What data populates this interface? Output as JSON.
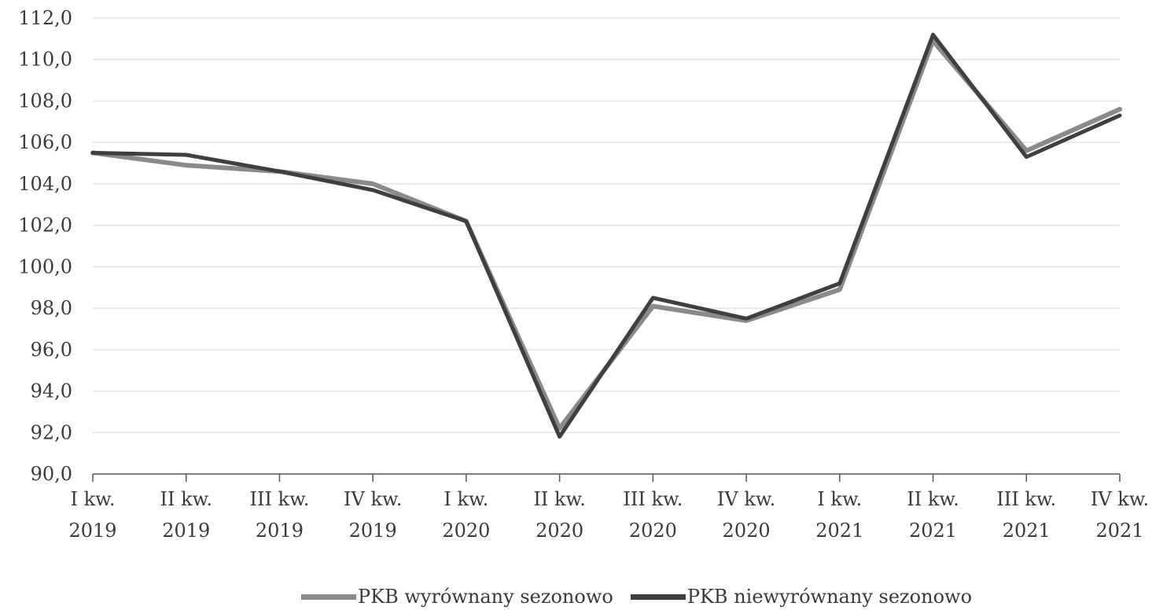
{
  "chart_data": {
    "type": "line",
    "title": "",
    "xlabel": "",
    "ylabel": "",
    "categories": [
      [
        "I kw.",
        "2019"
      ],
      [
        "II kw.",
        "2019"
      ],
      [
        "III kw.",
        "2019"
      ],
      [
        "IV kw.",
        "2019"
      ],
      [
        "I kw.",
        "2020"
      ],
      [
        "II kw.",
        "2020"
      ],
      [
        "III kw.",
        "2020"
      ],
      [
        "IV kw.",
        "2020"
      ],
      [
        "I kw.",
        "2021"
      ],
      [
        "II kw.",
        "2021"
      ],
      [
        "III kw.",
        "2021"
      ],
      [
        "IV kw.",
        "2021"
      ]
    ],
    "ylim": [
      90,
      112
    ],
    "yticks": [
      "90,0",
      "92,0",
      "94,0",
      "96,0",
      "98,0",
      "100,0",
      "102,0",
      "104,0",
      "106,0",
      "108,0",
      "110,0",
      "112,0"
    ],
    "grid": true,
    "legend_position": "bottom",
    "series": [
      {
        "name": "PKB wyrównany sezonowo",
        "color": "#8a8a8a",
        "values": [
          105.5,
          104.9,
          104.6,
          104.0,
          102.2,
          92.2,
          98.1,
          97.4,
          98.9,
          110.9,
          105.6,
          107.6
        ]
      },
      {
        "name": "PKB niewyrównany sezonowo",
        "color": "#3f3f3f",
        "values": [
          105.5,
          105.4,
          104.6,
          103.7,
          102.2,
          91.8,
          98.5,
          97.5,
          99.2,
          111.2,
          105.3,
          107.3
        ]
      }
    ]
  }
}
